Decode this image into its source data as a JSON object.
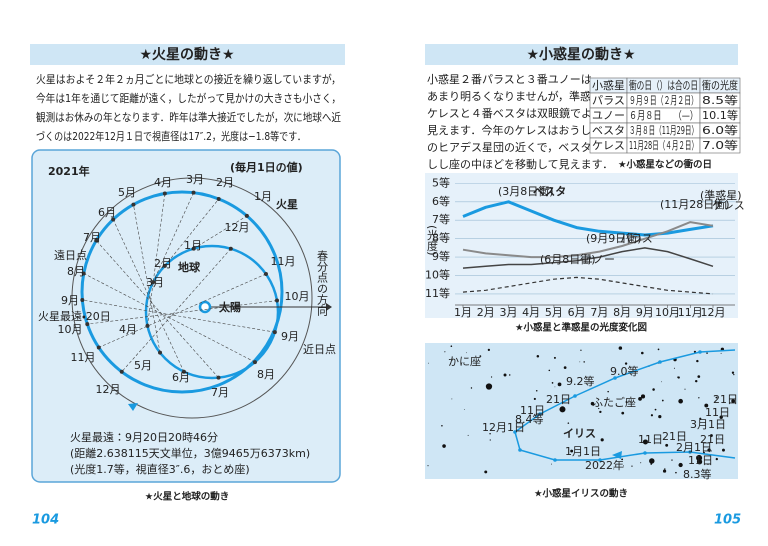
{
  "left_page": {
    "title": "★火星の動き★",
    "paragraph": [
      "火星はおよそ２年２ヵ月ごとに地球との接近を繰り返していますが，",
      "今年は1年を通じて距離が遠く，したがって見かけの大きさも小さく，",
      "観測はお休みの年となります．昨年は準大接近でしたが，次に地球へ近",
      "づくのは2022年12月１日で視直径は17″.2，光度は−1.8等です．"
    ],
    "diagram": {
      "year": "2021年",
      "note": "(毎月1日の値)",
      "mars_label": "火星",
      "earth_label": "地球",
      "sun_label": "太陽",
      "vernal": "春分点の方向",
      "perihelion": "近日点",
      "aphelion": "遠日点",
      "farthest": "火星最遠・20日",
      "mars_months": [
        "1月",
        "2月",
        "3月",
        "4月",
        "5月",
        "6月",
        "7月",
        "8月",
        "9月",
        "10月",
        "11月",
        "12月"
      ],
      "earth_months": [
        "1月",
        "2月",
        "3月",
        "4月",
        "5月",
        "6月",
        "7月",
        "8月",
        "9月",
        "10月",
        "11月",
        "12月"
      ],
      "info": [
        "火星最遠：9月20日20時46分",
        "(距離2.638115天文単位，3億9465万6373km)",
        "(光度1.7等，視直径3″.6，おとめ座)"
      ]
    },
    "caption": "★火星と地球の動き",
    "page_number": "104"
  },
  "right_page": {
    "title": "★小惑星の動き★",
    "paragraph": [
      "小惑星２番パラスと３番ユノーは，",
      "あまり明るくなりませんが，準惑星",
      "ケレスと４番ベスタは双眼鏡でよく",
      "見えます．今年のケレスはおうし座",
      "のヒアデス星団の近くで，ベスタは",
      "しし座の中ほどを移動して見えます．"
    ],
    "table": {
      "header": [
        "小惑星",
        "衝の日（）は合の日",
        "衝の光度"
      ],
      "rows": [
        [
          "パラス",
          "９月９日（２月２日）",
          "8.5等"
        ],
        [
          "ユノー",
          "６月８日　　（—）",
          "10.1等"
        ],
        [
          "ベスタ",
          "３月８日（11月29日）",
          "6.0等"
        ],
        [
          "ケレス",
          "11月28日（４月２日）",
          "7.0等"
        ]
      ]
    },
    "table_caption": "★小惑星などの衝の日",
    "brightness_chart": {
      "type": "line",
      "y_label": "(光度)",
      "categories": [
        "1月",
        "2月",
        "3月",
        "4月",
        "5月",
        "6月",
        "7月",
        "8月",
        "9月",
        "10月",
        "11月",
        "12月"
      ],
      "ylim": [
        4.6,
        11.6
      ],
      "inverted": true,
      "yticks": [
        {
          "value": 5,
          "label": "5等"
        },
        {
          "value": 6,
          "label": "6等"
        },
        {
          "value": 7,
          "label": "7等"
        },
        {
          "value": 8,
          "label": "8等"
        },
        {
          "value": 9,
          "label": "9等"
        },
        {
          "value": 10,
          "label": "10等"
        },
        {
          "value": 11,
          "label": "11等"
        }
      ],
      "grid": true,
      "series": [
        {
          "name": "ベスタ",
          "color": "#1a9ae0",
          "values": [
            6.8,
            6.3,
            6.0,
            6.5,
            7.0,
            7.4,
            7.6,
            7.7,
            7.8,
            7.7,
            7.5,
            7.3
          ]
        },
        {
          "name": "ケレス",
          "color": "#8a8a8a",
          "values": [
            8.6,
            8.8,
            8.9,
            9.0,
            9.0,
            8.9,
            8.7,
            8.4,
            8.0,
            7.6,
            7.1,
            7.3
          ]
        },
        {
          "name": "パラス",
          "color": "#444444",
          "values": [
            9.6,
            9.5,
            9.4,
            9.4,
            9.3,
            9.2,
            9.0,
            8.7,
            8.5,
            8.7,
            9.1,
            9.5
          ]
        },
        {
          "name": "ユノー",
          "color": "#333333",
          "values": [
            10.9,
            10.8,
            10.6,
            10.4,
            10.2,
            10.1,
            10.2,
            10.4,
            10.6,
            10.8,
            10.9,
            11.0
          ]
        }
      ],
      "annotations": [
        "(3月8日衝)",
        "(11月28日衝)",
        "(準惑星)",
        "(9月9日衝)",
        "(6月8日衝)"
      ]
    },
    "chart_caption": "★小惑星と準惑星の光度変化図",
    "star_map": {
      "labels": [
        "かに座",
        "ふたご座",
        "イリス",
        "2022年",
        "12月1日",
        "11日",
        "21日",
        "1月1日",
        "11日",
        "21日",
        "2月1日",
        "11日",
        "21日",
        "3月1日",
        "11日",
        "21日",
        "8.3等",
        "9.2等",
        "8.4等",
        "9.0等"
      ]
    },
    "map_caption": "★小惑星イリスの動き",
    "page_number": "105"
  }
}
